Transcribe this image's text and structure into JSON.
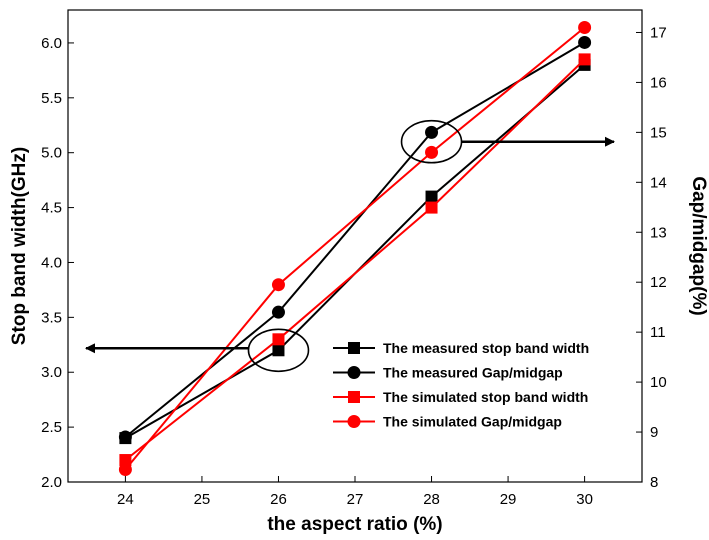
{
  "chart_data": {
    "type": "line",
    "title": "",
    "xlabel": "the aspect ratio (%)",
    "ylabel": "Stop band width(GHz)",
    "y2label": "Gap/midgap(%)",
    "x": [
      24,
      26,
      28,
      30
    ],
    "xticks": [
      24,
      25,
      26,
      27,
      28,
      29,
      30
    ],
    "xlim": [
      23.25,
      30.75
    ],
    "ylim": [
      2.0,
      6.3
    ],
    "yticks": [
      2.0,
      2.5,
      3.0,
      3.5,
      4.0,
      4.5,
      5.0,
      5.5,
      6.0
    ],
    "y2lim": [
      8,
      17.45
    ],
    "y2ticks": [
      8,
      9,
      10,
      11,
      12,
      13,
      14,
      15,
      16,
      17
    ],
    "grid": false,
    "legend_position": "bottom-right",
    "series": [
      {
        "name": "The measured stop band width",
        "axis": "left",
        "marker": "square",
        "color": "#000000",
        "values": [
          2.4,
          3.2,
          4.6,
          5.8
        ]
      },
      {
        "name": "The measured Gap/midgap",
        "axis": "right",
        "marker": "circle",
        "color": "#000000",
        "values": [
          8.9,
          11.4,
          15.0,
          16.8
        ]
      },
      {
        "name": "The simulated stop band width",
        "axis": "left",
        "marker": "square",
        "color": "#ff0000",
        "values": [
          2.2,
          3.3,
          4.5,
          5.85
        ]
      },
      {
        "name": "The simulated Gap/midgap",
        "axis": "right",
        "marker": "circle",
        "color": "#ff0000",
        "values": [
          8.25,
          11.95,
          14.6,
          17.1
        ]
      }
    ],
    "annotations": [
      {
        "kind": "ellipse-arrow",
        "x": 26,
        "y": 3.2,
        "points_to": "left-axis"
      },
      {
        "kind": "ellipse-arrow",
        "x": 28,
        "y": 5.1,
        "points_to": "right-axis"
      }
    ]
  }
}
